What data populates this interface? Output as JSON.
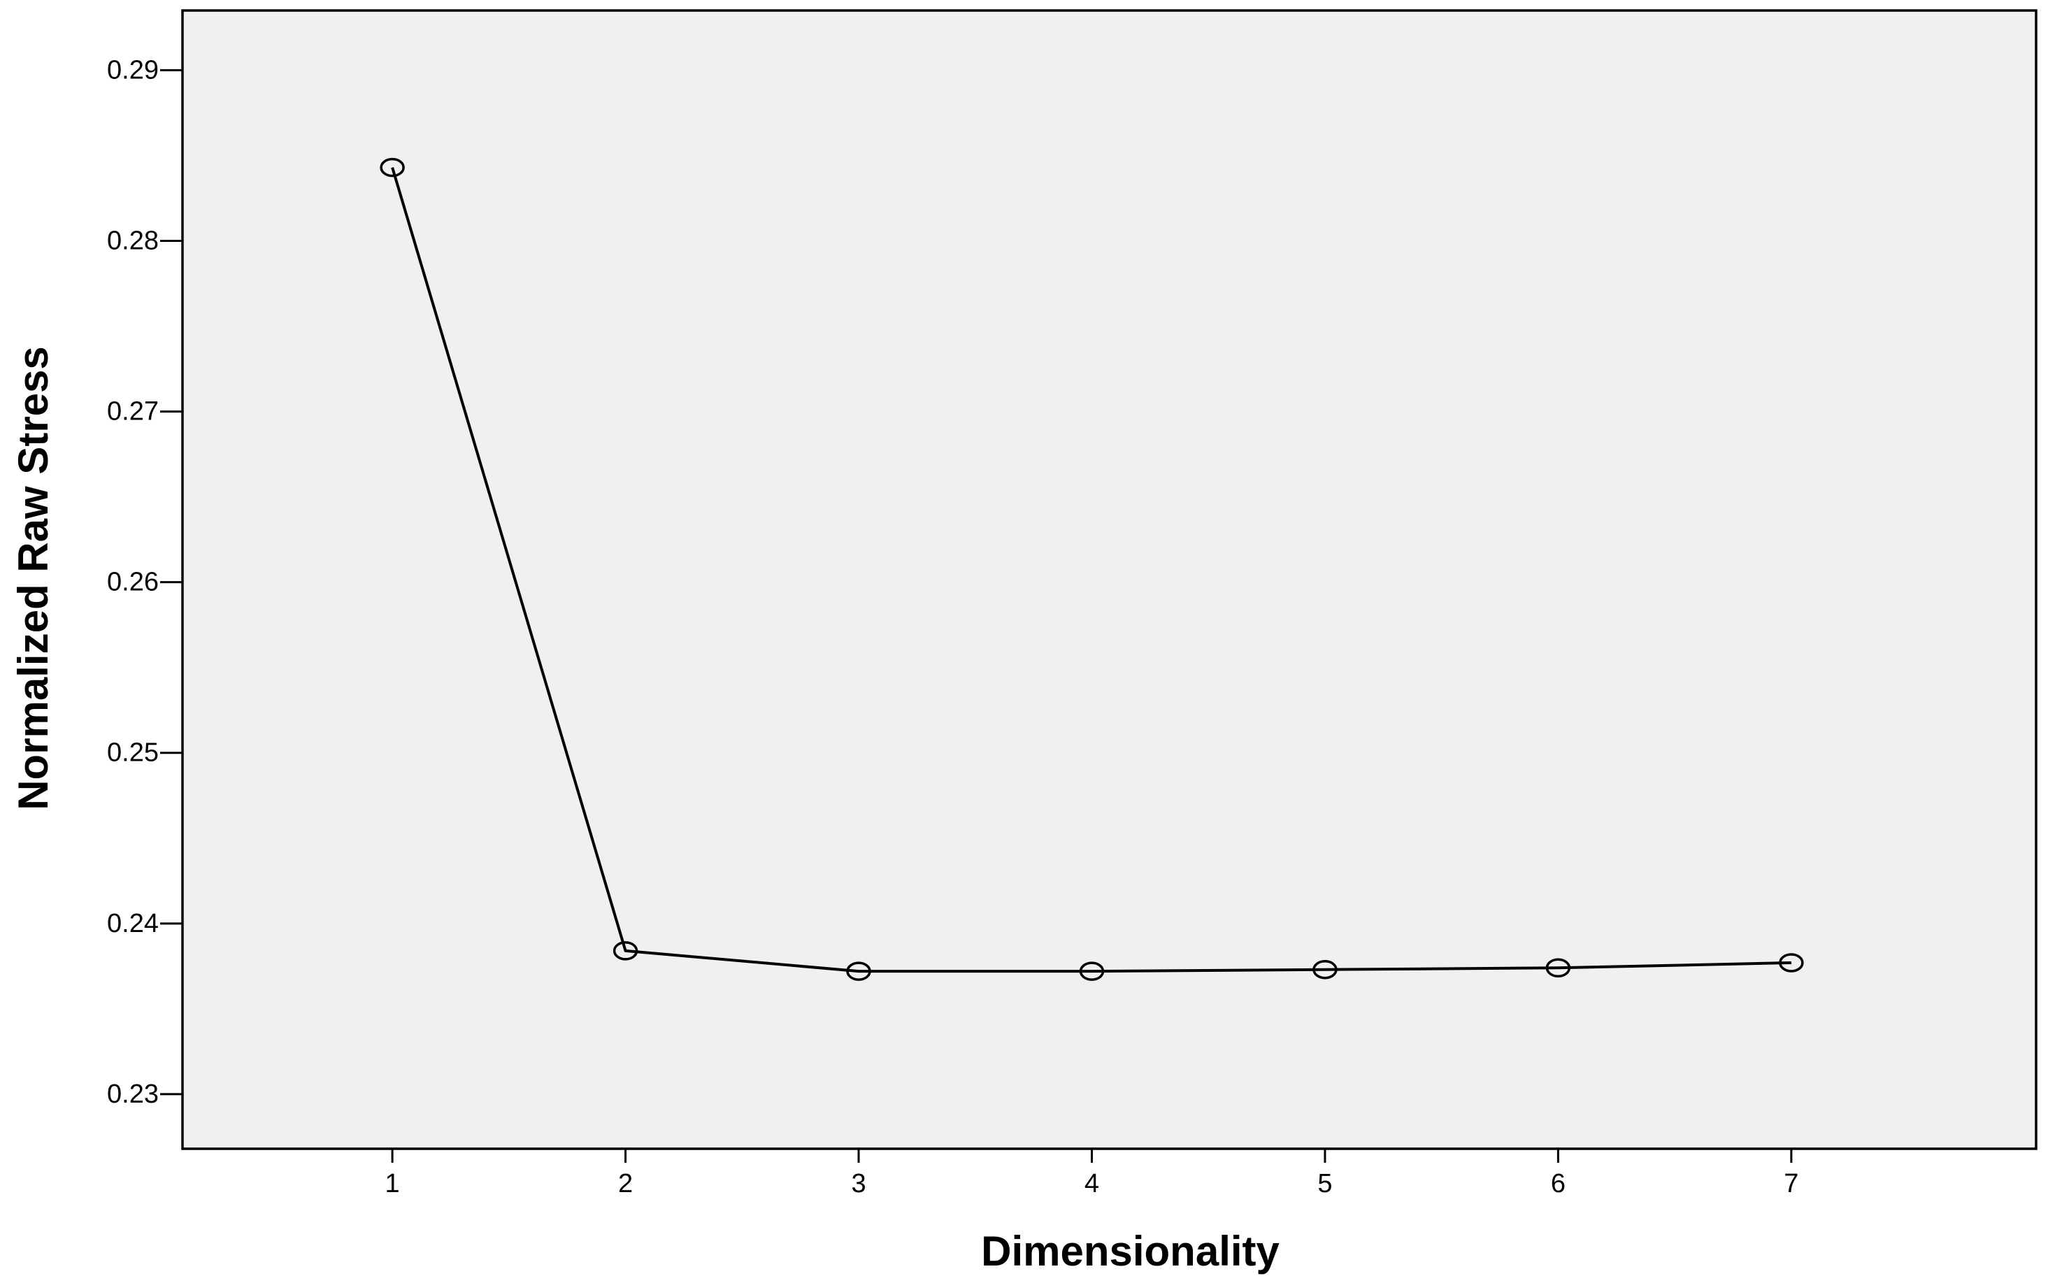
{
  "chart_data": {
    "type": "line",
    "title": "",
    "xlabel": "Dimensionality",
    "ylabel": "Normalized Raw Stress",
    "x": [
      1,
      2,
      3,
      4,
      5,
      6,
      7
    ],
    "x_tick_labels": [
      "1",
      "2",
      "3",
      "4",
      "5",
      "6",
      "7"
    ],
    "xlim": [
      0.1,
      8.05
    ],
    "y_ticks": [
      0.23,
      0.24,
      0.25,
      0.26,
      0.27,
      0.28,
      0.29
    ],
    "y_tick_labels": [
      "0.23",
      "0.24",
      "0.25",
      "0.26",
      "0.27",
      "0.28",
      "0.29"
    ],
    "ylim": [
      0.2268,
      0.2935
    ],
    "series": [
      {
        "values": [
          0.2843,
          0.2384,
          0.2372,
          0.2372,
          0.2373,
          0.2374,
          0.2377
        ]
      }
    ],
    "grid": false,
    "marker": "open-circle",
    "colors": {
      "plot_background": "#f0f0f0",
      "line": "#000000",
      "axis": "#000000"
    }
  }
}
